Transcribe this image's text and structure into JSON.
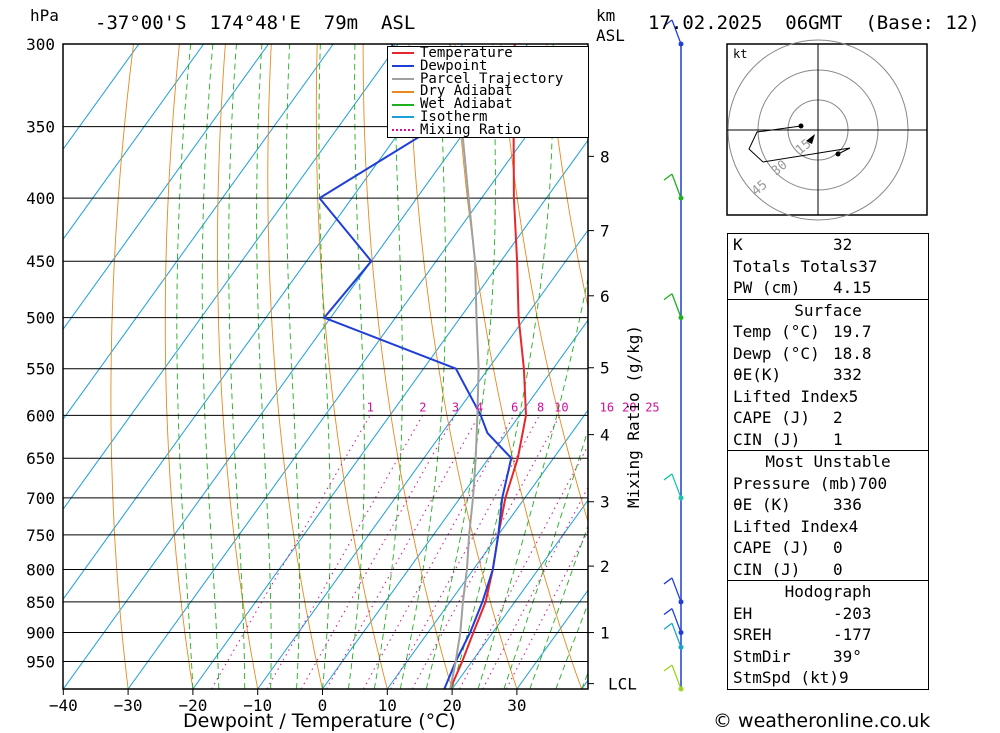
{
  "header": {
    "hpa_label": "hPa",
    "location": "-37°00'S  174°48'E  79m  ASL",
    "km_label": "km",
    "asl_label": "ASL",
    "datetime": "17.02.2025  06GMT  (Base: 12)"
  },
  "legend": [
    {
      "label": "Temperature",
      "color": "#e8262b"
    },
    {
      "label": "Dewpoint",
      "color": "#1f3fd6"
    },
    {
      "label": "Parcel Trajectory",
      "color": "#a0a0a0"
    },
    {
      "label": "Dry Adiabat",
      "color": "#e8891e"
    },
    {
      "label": "Wet Adiabat",
      "color": "#1fb01f"
    },
    {
      "label": "Isotherm",
      "color": "#1e9fdc"
    },
    {
      "label": "Mixing Ratio",
      "color": "#d0109c"
    }
  ],
  "chart_data": {
    "type": "line",
    "subtype": "skew-T log-P sounding",
    "xlabel": "Dewpoint / Temperature (°C)",
    "ylabel": "hPa",
    "x_ticks": [
      -40,
      -30,
      -20,
      -10,
      0,
      10,
      20,
      30
    ],
    "pressure_levels": [
      300,
      350,
      400,
      450,
      500,
      550,
      600,
      650,
      700,
      750,
      800,
      850,
      900,
      950
    ],
    "xlim": [
      -40,
      40
    ],
    "ylim": [
      1000,
      300
    ],
    "km_axis_label": "km ASL",
    "km_ticks": [
      {
        "label": "8",
        "p": 370
      },
      {
        "label": "7",
        "p": 425
      },
      {
        "label": "6",
        "p": 480
      },
      {
        "label": "5",
        "p": 549
      },
      {
        "label": "4",
        "p": 622
      },
      {
        "label": "3",
        "p": 705
      },
      {
        "label": "2",
        "p": 795
      },
      {
        "label": "1",
        "p": 900
      },
      {
        "label": "LCL",
        "p": 990
      }
    ],
    "mixing_ratio_label": "Mixing Ratio (g/kg)",
    "mixing_ratio_values": [
      "1",
      "2",
      "3",
      "4",
      "6",
      "8",
      "10",
      "16",
      "20",
      "25"
    ],
    "series": [
      {
        "name": "Temperature",
        "color": "#e8262b",
        "points": [
          [
            1000,
            19.7
          ],
          [
            950,
            18.5
          ],
          [
            900,
            17
          ],
          [
            850,
            15.5
          ],
          [
            800,
            13
          ],
          [
            750,
            10
          ],
          [
            700,
            7
          ],
          [
            650,
            4.5
          ],
          [
            600,
            1
          ],
          [
            550,
            -4.5
          ],
          [
            500,
            -11
          ],
          [
            450,
            -17.5
          ],
          [
            400,
            -25
          ],
          [
            350,
            -33
          ],
          [
            300,
            -42
          ]
        ]
      },
      {
        "name": "Dewpoint",
        "color": "#1f3fd6",
        "points": [
          [
            1000,
            18.8
          ],
          [
            950,
            17.5
          ],
          [
            900,
            16.5
          ],
          [
            850,
            15
          ],
          [
            800,
            13
          ],
          [
            750,
            10
          ],
          [
            700,
            6.5
          ],
          [
            650,
            3.5
          ],
          [
            620,
            -3
          ],
          [
            600,
            -6
          ],
          [
            550,
            -15
          ],
          [
            500,
            -41
          ],
          [
            450,
            -40
          ],
          [
            400,
            -55
          ],
          [
            350,
            -45
          ],
          [
            300,
            -61
          ]
        ]
      },
      {
        "name": "Parcel Trajectory",
        "color": "#a0a0a0",
        "points": [
          [
            1000,
            19.7
          ],
          [
            950,
            17.5
          ],
          [
            900,
            15
          ],
          [
            850,
            12
          ],
          [
            800,
            9
          ],
          [
            750,
            5.5
          ],
          [
            700,
            2
          ],
          [
            650,
            -2
          ],
          [
            600,
            -6.5
          ],
          [
            550,
            -11.5
          ],
          [
            500,
            -17.5
          ],
          [
            450,
            -24
          ],
          [
            400,
            -32
          ],
          [
            350,
            -41
          ],
          [
            300,
            -52
          ]
        ]
      }
    ],
    "wind_barbs": [
      {
        "p": 300,
        "color": "#1f3fd6"
      },
      {
        "p": 400,
        "color": "#1fb01f"
      },
      {
        "p": 500,
        "color": "#1fb01f"
      },
      {
        "p": 700,
        "color": "#19c6a6"
      },
      {
        "p": 850,
        "color": "#1f3fd6"
      },
      {
        "p": 900,
        "color": "#1f3fd6"
      },
      {
        "p": 925,
        "color": "#19a6c6"
      },
      {
        "p": 1000,
        "color": "#9ad61f"
      }
    ],
    "hodograph": {
      "unit": "kt",
      "ring_labels": [
        "15",
        "30",
        "45"
      ]
    }
  },
  "indices": {
    "rows": [
      {
        "k": "K",
        "v": "32"
      },
      {
        "k": "Totals Totals",
        "v": "37"
      },
      {
        "k": "PW (cm)",
        "v": "4.15"
      }
    ],
    "surface_title": "Surface",
    "surface": [
      {
        "k": "Temp (°C)",
        "v": "19.7"
      },
      {
        "k": "Dewp (°C)",
        "v": "18.8"
      },
      {
        "k": "θE(K)",
        "v": "332"
      },
      {
        "k": "Lifted Index",
        "v": "5"
      },
      {
        "k": "CAPE (J)",
        "v": "2"
      },
      {
        "k": "CIN (J)",
        "v": "1"
      }
    ],
    "mu_title": "Most Unstable",
    "mu": [
      {
        "k": "Pressure (mb)",
        "v": "700"
      },
      {
        "k": "θE (K)",
        "v": "336"
      },
      {
        "k": "Lifted Index",
        "v": "4"
      },
      {
        "k": "CAPE (J)",
        "v": "0"
      },
      {
        "k": "CIN (J)",
        "v": "0"
      }
    ],
    "hodo_title": "Hodograph",
    "hodo": [
      {
        "k": "EH",
        "v": "-203"
      },
      {
        "k": "SREH",
        "v": "-177"
      },
      {
        "k": "StmDir",
        "v": "39°"
      },
      {
        "k": "StmSpd (kt)",
        "v": "9"
      }
    ]
  },
  "copyright": "© weatheronline.co.uk"
}
